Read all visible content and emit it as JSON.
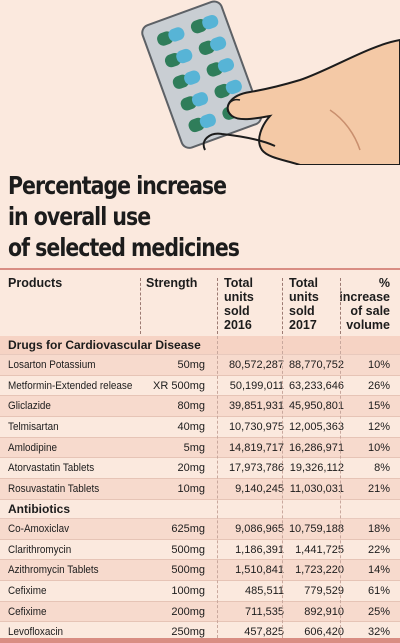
{
  "title_lines": [
    "Percentage increase",
    "in overall use",
    "of selected medicines"
  ],
  "chart_data": {
    "type": "table",
    "columns": [
      "Products",
      "Strength",
      "Total units sold 2016",
      "Total units sold 2017",
      "% increase of sale volume"
    ],
    "header_lines": {
      "products": [
        "Products"
      ],
      "strength": [
        "Strength"
      ],
      "sold2016": [
        "Total",
        "units",
        "sold",
        "2016"
      ],
      "sold2017": [
        "Total",
        "units",
        "sold",
        "2017"
      ],
      "pct": [
        "%",
        "increase",
        "of sale",
        "volume"
      ]
    },
    "sections": [
      {
        "name": "Drugs for Cardiovascular Disease",
        "rows": [
          {
            "product": "Losarton Potassium",
            "strength": "50mg",
            "sold_2016": "80,572,287",
            "sold_2017": "88,770,752",
            "increase": "10%"
          },
          {
            "product": "Metformin-Extended release",
            "strength": "XR 500mg",
            "sold_2016": "50,199,011",
            "sold_2017": "63,233,646",
            "increase": "26%"
          },
          {
            "product": "Gliclazide",
            "strength": "80mg",
            "sold_2016": "39,851,931",
            "sold_2017": "45,950,801",
            "increase": "15%"
          },
          {
            "product": "Telmisartan",
            "strength": "40mg",
            "sold_2016": "10,730,975",
            "sold_2017": "12,005,363",
            "increase": "12%"
          },
          {
            "product": "Amlodipine",
            "strength": "5mg",
            "sold_2016": "14,819,717",
            "sold_2017": "16,286,971",
            "increase": "10%"
          },
          {
            "product": "Atorvastatin Tablets",
            "strength": "20mg",
            "sold_2016": "17,973,786",
            "sold_2017": "19,326,112",
            "increase": "8%"
          },
          {
            "product": "Rosuvastatin Tablets",
            "strength": "10mg",
            "sold_2016": "9,140,245",
            "sold_2017": "11,030,031",
            "increase": "21%"
          }
        ]
      },
      {
        "name": "Antibiotics",
        "rows": [
          {
            "product": "Co-Amoxiclav",
            "strength": "625mg",
            "sold_2016": "9,086,965",
            "sold_2017": "10,759,188",
            "increase": "18%"
          },
          {
            "product": "Clarithromycin",
            "strength": "500mg",
            "sold_2016": "1,186,391",
            "sold_2017": "1,441,725",
            "increase": "22%"
          },
          {
            "product": "Azithromycin Tablets",
            "strength": "500mg",
            "sold_2016": "1,510,841",
            "sold_2017": "1,723,220",
            "increase": "14%"
          },
          {
            "product": "Cefixime",
            "strength": "100mg",
            "sold_2016": "485,511",
            "sold_2017": "779,529",
            "increase": "61%"
          },
          {
            "product": "Cefixime",
            "strength": "200mg",
            "sold_2016": "711,535",
            "sold_2017": "892,910",
            "increase": "25%"
          },
          {
            "product": "Levofloxacin",
            "strength": "250mg",
            "sold_2016": "457,825",
            "sold_2017": "606,420",
            "increase": "32%"
          }
        ]
      }
    ]
  },
  "colors": {
    "background": "#fbe9de",
    "row_alt": "#f7dacd",
    "rule": "#d98d83",
    "text": "#1c1c1c",
    "capsule_blue": "#57b4d6",
    "capsule_green": "#2f7d5a",
    "blister": "#c9ced3",
    "skin": "#f4c9a6"
  },
  "icons": [
    "pill-blister-pack-illustration",
    "hand-illustration"
  ]
}
